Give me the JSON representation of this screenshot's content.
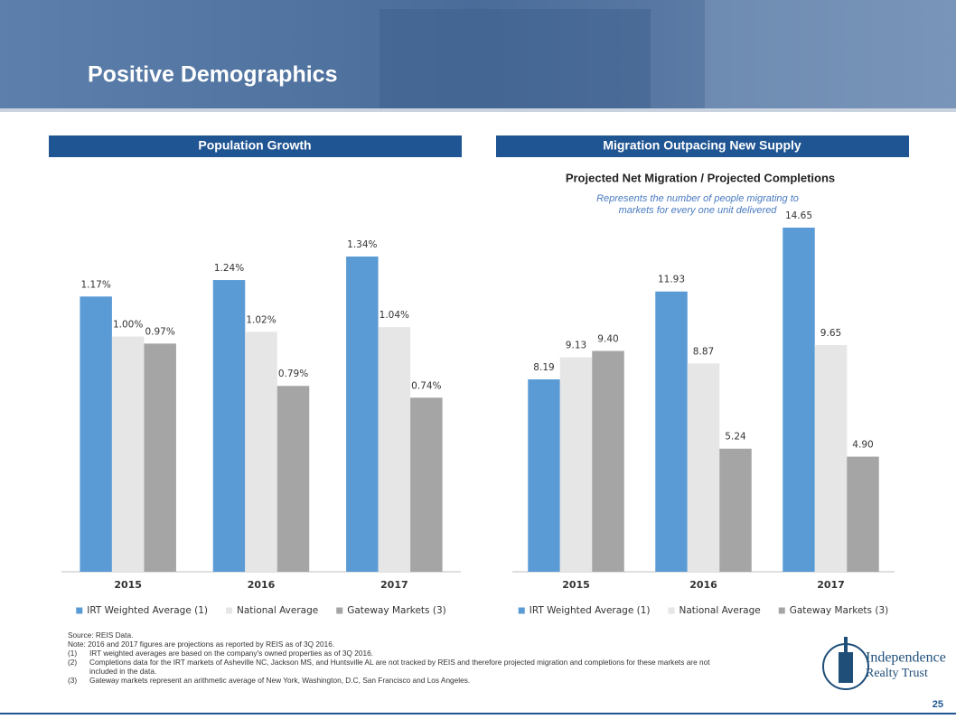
{
  "title": "Positive Demographics",
  "chart_data": [
    {
      "type": "bar",
      "header": "Population Growth",
      "categories": [
        "2015",
        "2016",
        "2017"
      ],
      "series": [
        {
          "name": "IRT Weighted Average (1)",
          "color": "#5b9bd5",
          "values": [
            1.17,
            1.24,
            1.34
          ],
          "value_labels": [
            "1.17%",
            "1.24%",
            "1.34%"
          ]
        },
        {
          "name": "National Average",
          "color": "#e7e6e6",
          "values": [
            1.0,
            1.02,
            1.04
          ],
          "value_labels": [
            "1.00%",
            "1.02%",
            "1.04%"
          ]
        },
        {
          "name": "Gateway Markets (3)",
          "color": "#a5a5a5",
          "values": [
            0.97,
            0.79,
            0.74
          ],
          "value_labels": [
            "0.97%",
            "0.79%",
            "0.74%"
          ]
        }
      ]
    },
    {
      "type": "bar",
      "header": "Migration Outpacing New Supply",
      "title": "Projected Net Migration / Projected Completions",
      "subtitle": [
        "Represents the number of people migrating to",
        "markets for every one unit delivered"
      ],
      "categories": [
        "2015",
        "2016",
        "2017"
      ],
      "series": [
        {
          "name": "IRT Weighted Average (1)",
          "color": "#5b9bd5",
          "values": [
            8.19,
            11.93,
            14.65
          ],
          "value_labels": [
            "8.19",
            "11.93",
            "14.65"
          ]
        },
        {
          "name": "National Average",
          "color": "#e7e6e6",
          "values": [
            9.13,
            8.87,
            9.65
          ],
          "value_labels": [
            "9.13",
            "8.87",
            "9.65"
          ]
        },
        {
          "name": "Gateway Markets (3)",
          "color": "#a5a5a5",
          "values": [
            9.4,
            5.24,
            4.9
          ],
          "value_labels": [
            "9.40",
            "5.24",
            "4.90"
          ]
        }
      ]
    }
  ],
  "footnotes": {
    "source": "Source: REIS Data.",
    "note": "Note: 2016 and 2017 figures are projections as reported by REIS as of 3Q 2016.",
    "items": [
      {
        "marker": "(1)",
        "text": "IRT weighted averages are based on the company's owned properties as of 3Q 2016."
      },
      {
        "marker": "(2)",
        "text": "Completions data for the IRT markets of Asheville NC, Jackson MS, and Huntsville AL are not tracked by REIS and therefore projected migration and completions for these markets are not included in the data."
      },
      {
        "marker": "(3)",
        "text": "Gateway markets represent an arithmetic average of New York, Washington, D.C, San Francisco and Los Angeles."
      }
    ]
  },
  "logo": {
    "line1": "Independence",
    "line2": "Realty Trust"
  },
  "page_number": "25"
}
